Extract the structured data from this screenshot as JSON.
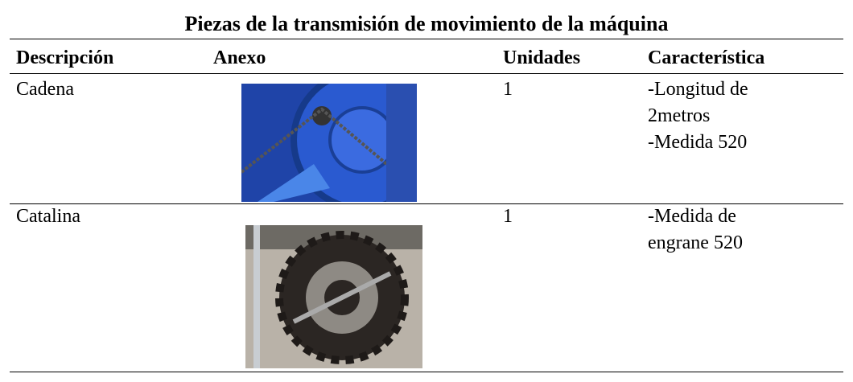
{
  "table": {
    "title": "Piezas de la transmisión de movimiento de la máquina",
    "headers": [
      "Descripción",
      "Anexo",
      "Unidades",
      "Característica"
    ],
    "rows": [
      {
        "description": "Cadena",
        "units": "1",
        "features": [
          "-Longitud de 2metros",
          "-Medida 520"
        ]
      },
      {
        "description": "Catalina",
        "units": "1",
        "features": [
          "-Medida de engrane 520"
        ]
      }
    ]
  }
}
